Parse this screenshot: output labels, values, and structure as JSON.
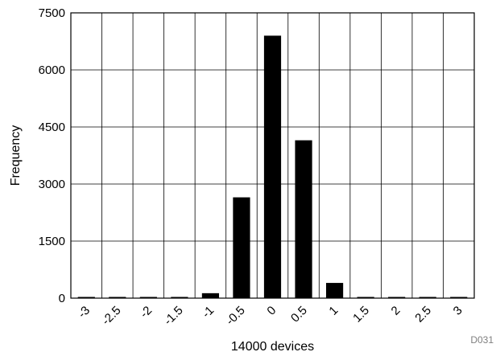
{
  "chart_data": {
    "type": "bar",
    "categories": [
      "-3",
      "-2.5",
      "-2",
      "-1.5",
      "-1",
      "-0.5",
      "0",
      "0.5",
      "1",
      "1.5",
      "2",
      "2.5",
      "3"
    ],
    "values": [
      0,
      5,
      5,
      10,
      130,
      2650,
      6900,
      4150,
      400,
      20,
      5,
      5,
      5
    ],
    "xlabel": "14000 devices",
    "ylabel": "Frequency",
    "ylim": [
      0,
      7500
    ],
    "yticks": [
      "0",
      "1500",
      "3000",
      "4500",
      "6000",
      "7500"
    ],
    "grid": true,
    "colors": {
      "bar": "#000000",
      "grid": "#000000"
    }
  },
  "figure_tag": "D031"
}
